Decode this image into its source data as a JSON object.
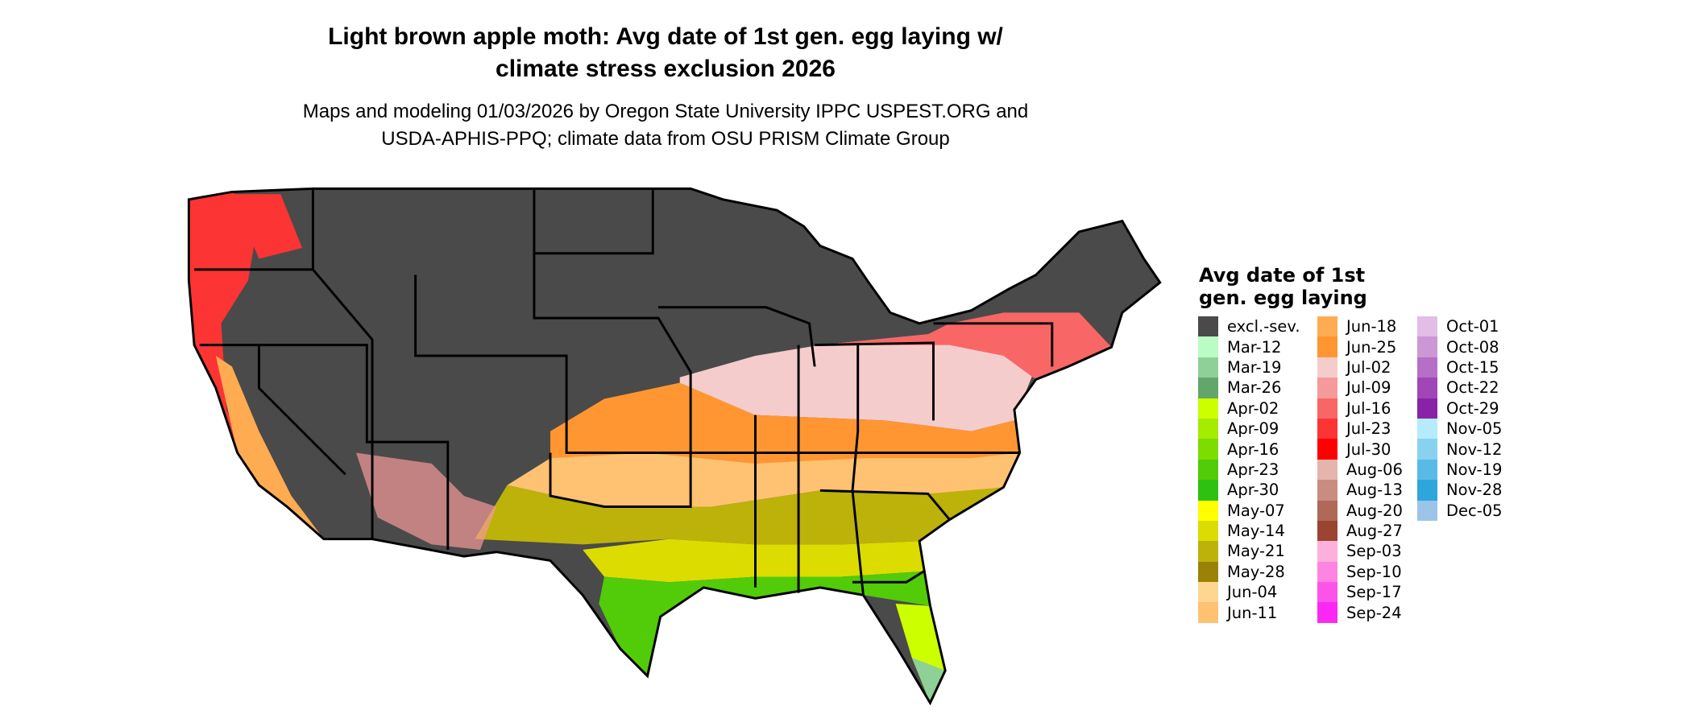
{
  "title_line1": "Light brown apple moth: Avg date of 1st gen. egg laying w/",
  "title_line2": "climate stress exclusion 2026",
  "subtitle_line1": "Maps and modeling 01/03/2026 by Oregon State University IPPC USPEST.ORG and",
  "subtitle_line2": "USDA-APHIS-PPQ; climate data from OSU PRISM Climate Group",
  "legend": {
    "title_line1": "Avg date of 1st",
    "title_line2": "gen. egg laying",
    "columns": [
      [
        {
          "label": "excl.-sev.",
          "color": "#4a4a4a"
        },
        {
          "label": "Mar-12",
          "color": "#b9fdc4"
        },
        {
          "label": "Mar-19",
          "color": "#8fd096"
        },
        {
          "label": "Mar-26",
          "color": "#63a66b"
        },
        {
          "label": "Apr-02",
          "color": "#ccff00"
        },
        {
          "label": "Apr-09",
          "color": "#a4ec00"
        },
        {
          "label": "Apr-16",
          "color": "#7ddc00"
        },
        {
          "label": "Apr-23",
          "color": "#52cb08"
        },
        {
          "label": "Apr-30",
          "color": "#2ec111"
        },
        {
          "label": "May-07",
          "color": "#ffff00"
        },
        {
          "label": "May-14",
          "color": "#dcdc00"
        },
        {
          "label": "May-21",
          "color": "#bcb20a"
        },
        {
          "label": "May-28",
          "color": "#9a8208"
        },
        {
          "label": "Jun-04",
          "color": "#ffd690"
        },
        {
          "label": "Jun-11",
          "color": "#ffc172"
        }
      ],
      [
        {
          "label": "Jun-18",
          "color": "#ffab52"
        },
        {
          "label": "Jun-25",
          "color": "#ff9632"
        },
        {
          "label": "Jul-02",
          "color": "#f5cccc"
        },
        {
          "label": "Jul-09",
          "color": "#f59a9a"
        },
        {
          "label": "Jul-16",
          "color": "#f86666"
        },
        {
          "label": "Jul-23",
          "color": "#fc3434"
        },
        {
          "label": "Jul-30",
          "color": "#ff0000"
        },
        {
          "label": "Aug-06",
          "color": "#e4b5ad"
        },
        {
          "label": "Aug-13",
          "color": "#c98c80"
        },
        {
          "label": "Aug-20",
          "color": "#b06858"
        },
        {
          "label": "Aug-27",
          "color": "#9a4432"
        },
        {
          "label": "Sep-03",
          "color": "#fdb0dc"
        },
        {
          "label": "Sep-10",
          "color": "#fd84e0"
        },
        {
          "label": "Sep-17",
          "color": "#fc54e8"
        },
        {
          "label": "Sep-24",
          "color": "#fb28f4"
        }
      ],
      [
        {
          "label": "Oct-01",
          "color": "#e2bde6"
        },
        {
          "label": "Oct-08",
          "color": "#cb97d6"
        },
        {
          "label": "Oct-15",
          "color": "#b56fc6"
        },
        {
          "label": "Oct-22",
          "color": "#a046b6"
        },
        {
          "label": "Oct-29",
          "color": "#8a22a8"
        },
        {
          "label": "Nov-05",
          "color": "#b4ecfc"
        },
        {
          "label": "Nov-12",
          "color": "#88d2f0"
        },
        {
          "label": "Nov-19",
          "color": "#5abae6"
        },
        {
          "label": "Nov-28",
          "color": "#2ea6dc"
        },
        {
          "label": "Dec-05",
          "color": "#9cc4e8"
        }
      ]
    ]
  }
}
